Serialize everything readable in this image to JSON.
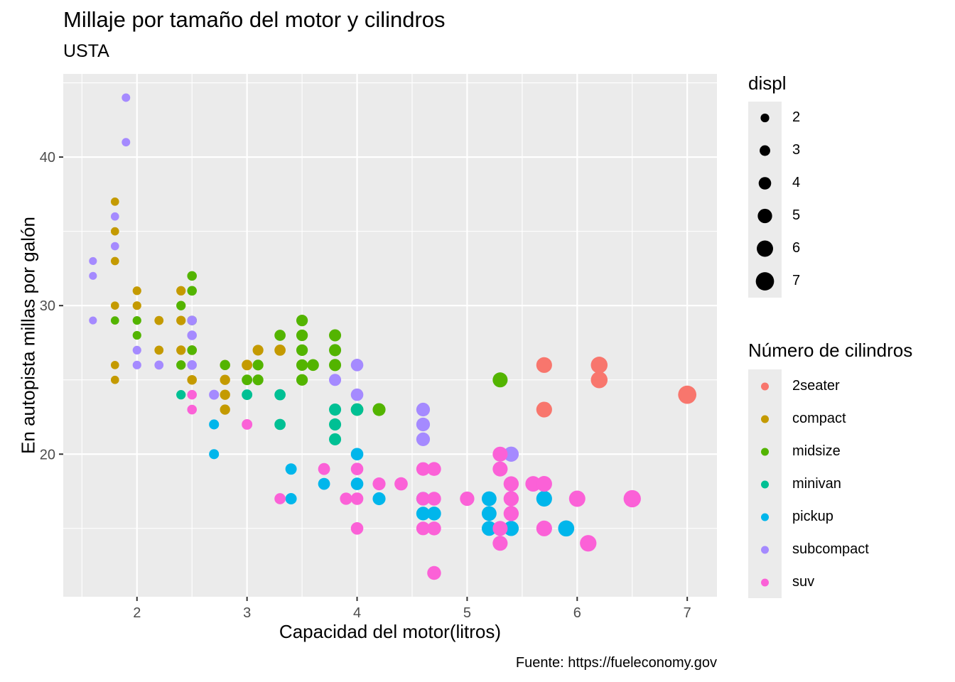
{
  "chart_data": {
    "type": "scatter",
    "title": "Millaje por tamaño del motor y cilindros",
    "subtitle": "USTA",
    "caption": "Fuente: https://fueleconomy.gov",
    "xlabel": "Capacidad del motor(litros)",
    "ylabel": "En autopista millas por galón",
    "xlim": [
      1.33,
      7.27
    ],
    "ylim": [
      10.4,
      45.6
    ],
    "x_ticks": [
      2,
      3,
      4,
      5,
      6,
      7
    ],
    "y_ticks": [
      20,
      30,
      40
    ],
    "grid": true,
    "legend_position": "right",
    "size_legend": {
      "title": "displ",
      "values": [
        2,
        3,
        4,
        5,
        6,
        7
      ]
    },
    "color_legend": {
      "title": "Número de cilindros",
      "entries": [
        {
          "label": "2seater",
          "color": "#F8766D"
        },
        {
          "label": "compact",
          "color": "#C49A00"
        },
        {
          "label": "midsize",
          "color": "#53B400"
        },
        {
          "label": "minivan",
          "color": "#00C094"
        },
        {
          "label": "pickup",
          "color": "#00B6EB"
        },
        {
          "label": "subcompact",
          "color": "#A58AFF"
        },
        {
          "label": "suv",
          "color": "#FB61D7"
        }
      ]
    },
    "series": [
      {
        "name": "2seater",
        "color": "#F8766D",
        "points": [
          [
            5.7,
            26
          ],
          [
            5.7,
            23
          ],
          [
            6.2,
            26
          ],
          [
            6.2,
            25
          ],
          [
            7.0,
            24
          ]
        ]
      },
      {
        "name": "compact",
        "color": "#C49A00",
        "points": [
          [
            1.8,
            37
          ],
          [
            1.8,
            35
          ],
          [
            1.8,
            33
          ],
          [
            1.8,
            30
          ],
          [
            1.8,
            26
          ],
          [
            1.8,
            25
          ],
          [
            2.0,
            31
          ],
          [
            2.0,
            30
          ],
          [
            2.2,
            29
          ],
          [
            2.2,
            27
          ],
          [
            2.4,
            31
          ],
          [
            2.4,
            29
          ],
          [
            2.4,
            27
          ],
          [
            2.5,
            27
          ],
          [
            2.5,
            25
          ],
          [
            2.8,
            26
          ],
          [
            2.8,
            25
          ],
          [
            2.8,
            24
          ],
          [
            2.8,
            23
          ],
          [
            3.0,
            26
          ],
          [
            3.1,
            27
          ],
          [
            3.3,
            27
          ]
        ]
      },
      {
        "name": "midsize",
        "color": "#53B400",
        "points": [
          [
            1.8,
            29
          ],
          [
            2.0,
            29
          ],
          [
            2.0,
            28
          ],
          [
            2.4,
            30
          ],
          [
            2.4,
            26
          ],
          [
            2.5,
            32
          ],
          [
            2.5,
            31
          ],
          [
            2.5,
            29
          ],
          [
            2.5,
            27
          ],
          [
            2.8,
            26
          ],
          [
            3.0,
            25
          ],
          [
            3.1,
            26
          ],
          [
            3.1,
            25
          ],
          [
            3.3,
            28
          ],
          [
            3.5,
            29
          ],
          [
            3.5,
            28
          ],
          [
            3.5,
            27
          ],
          [
            3.5,
            26
          ],
          [
            3.5,
            25
          ],
          [
            3.6,
            26
          ],
          [
            3.8,
            28
          ],
          [
            3.8,
            27
          ],
          [
            3.8,
            26
          ],
          [
            4.0,
            23
          ],
          [
            4.2,
            23
          ],
          [
            5.3,
            25
          ]
        ]
      },
      {
        "name": "minivan",
        "color": "#00C094",
        "points": [
          [
            2.4,
            24
          ],
          [
            3.0,
            24
          ],
          [
            3.3,
            24
          ],
          [
            3.3,
            22
          ],
          [
            3.8,
            23
          ],
          [
            3.8,
            22
          ],
          [
            3.8,
            21
          ],
          [
            4.0,
            23
          ]
        ]
      },
      {
        "name": "pickup",
        "color": "#00B6EB",
        "points": [
          [
            2.7,
            22
          ],
          [
            2.7,
            20
          ],
          [
            3.4,
            19
          ],
          [
            3.4,
            17
          ],
          [
            3.7,
            18
          ],
          [
            4.0,
            20
          ],
          [
            4.0,
            18
          ],
          [
            4.2,
            17
          ],
          [
            4.6,
            17
          ],
          [
            4.6,
            16
          ],
          [
            4.7,
            16
          ],
          [
            5.2,
            17
          ],
          [
            5.2,
            16
          ],
          [
            5.2,
            15
          ],
          [
            5.4,
            15
          ],
          [
            5.7,
            17
          ],
          [
            5.9,
            15
          ]
        ]
      },
      {
        "name": "subcompact",
        "color": "#A58AFF",
        "points": [
          [
            1.6,
            33
          ],
          [
            1.6,
            32
          ],
          [
            1.6,
            29
          ],
          [
            1.9,
            44
          ],
          [
            1.9,
            41
          ],
          [
            1.8,
            36
          ],
          [
            1.8,
            34
          ],
          [
            2.0,
            27
          ],
          [
            2.0,
            26
          ],
          [
            2.2,
            26
          ],
          [
            2.5,
            29
          ],
          [
            2.5,
            28
          ],
          [
            2.5,
            26
          ],
          [
            2.7,
            24
          ],
          [
            3.8,
            25
          ],
          [
            4.0,
            26
          ],
          [
            4.0,
            24
          ],
          [
            4.6,
            23
          ],
          [
            4.6,
            22
          ],
          [
            4.6,
            21
          ],
          [
            5.4,
            20
          ]
        ]
      },
      {
        "name": "suv",
        "color": "#FB61D7",
        "points": [
          [
            2.5,
            24
          ],
          [
            2.5,
            23
          ],
          [
            3.0,
            22
          ],
          [
            3.3,
            17
          ],
          [
            3.7,
            19
          ],
          [
            3.9,
            17
          ],
          [
            4.0,
            19
          ],
          [
            4.0,
            17
          ],
          [
            4.0,
            15
          ],
          [
            4.2,
            18
          ],
          [
            4.4,
            18
          ],
          [
            4.6,
            19
          ],
          [
            4.6,
            17
          ],
          [
            4.6,
            15
          ],
          [
            4.7,
            19
          ],
          [
            4.7,
            17
          ],
          [
            4.7,
            15
          ],
          [
            4.7,
            12
          ],
          [
            5.0,
            17
          ],
          [
            5.3,
            20
          ],
          [
            5.3,
            19
          ],
          [
            5.3,
            15
          ],
          [
            5.3,
            14
          ],
          [
            5.4,
            18
          ],
          [
            5.4,
            17
          ],
          [
            5.4,
            16
          ],
          [
            5.6,
            18
          ],
          [
            5.7,
            18
          ],
          [
            5.7,
            15
          ],
          [
            6.0,
            17
          ],
          [
            6.1,
            14
          ],
          [
            6.5,
            17
          ]
        ]
      }
    ]
  }
}
